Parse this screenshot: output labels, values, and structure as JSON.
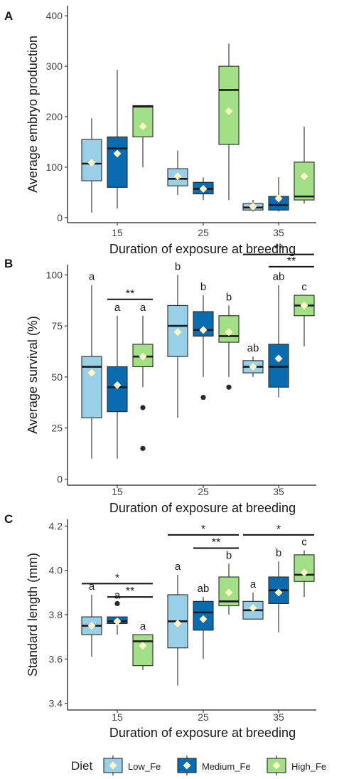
{
  "legend": {
    "title": "Diet",
    "entries": [
      {
        "label": "Low_Fe",
        "color": "#99CFE7"
      },
      {
        "label": "Medium_Fe",
        "color": "#0A6BAE"
      },
      {
        "label": "High_Fe",
        "color": "#A2DF86"
      }
    ],
    "mean_marker_color": "#FFF6C6",
    "outlier_color": "#2a2a2a"
  },
  "chart_data": [
    {
      "type": "box",
      "panel_letter": "A",
      "xlabel": "Duration of exposure at breeding",
      "ylabel": "Average embryo production",
      "categories": [
        "15",
        "25",
        "35"
      ],
      "ylim": [
        -10,
        420
      ],
      "yticks": [
        0,
        100,
        200,
        300,
        400
      ],
      "series": [
        {
          "name": "Low_Fe",
          "boxes": [
            {
              "min": 10,
              "q1": 73,
              "median": 107,
              "q3": 155,
              "max": 197,
              "mean": 109,
              "outliers": [],
              "letter": ""
            },
            {
              "min": 45,
              "q1": 63,
              "median": 77,
              "q3": 97,
              "max": 133,
              "mean": 82,
              "outliers": [],
              "letter": ""
            },
            {
              "min": 12,
              "q1": 15,
              "median": 20,
              "q3": 28,
              "max": 35,
              "mean": 22,
              "outliers": [],
              "letter": ""
            }
          ]
        },
        {
          "name": "Medium_Fe",
          "boxes": [
            {
              "min": 18,
              "q1": 60,
              "median": 137,
              "q3": 160,
              "max": 293,
              "mean": 127,
              "outliers": [],
              "letter": ""
            },
            {
              "min": 35,
              "q1": 47,
              "median": 57,
              "q3": 70,
              "max": 80,
              "mean": 57,
              "outliers": [],
              "letter": ""
            },
            {
              "min": 12,
              "q1": 15,
              "median": 25,
              "q3": 42,
              "max": 80,
              "mean": 38,
              "outliers": [],
              "letter": ""
            }
          ]
        },
        {
          "name": "High_Fe",
          "boxes": [
            {
              "min": 100,
              "q1": 160,
              "median": 220,
              "q3": 222,
              "max": 222,
              "mean": 181,
              "outliers": [],
              "letter": ""
            },
            {
              "min": 35,
              "q1": 145,
              "median": 253,
              "q3": 300,
              "max": 345,
              "mean": 211,
              "outliers": [],
              "letter": ""
            },
            {
              "min": 28,
              "q1": 35,
              "median": 42,
              "q3": 110,
              "max": 180,
              "mean": 82,
              "outliers": [],
              "letter": ""
            }
          ]
        }
      ],
      "significance": []
    },
    {
      "type": "box",
      "panel_letter": "B",
      "xlabel": "Duration of exposure at breeding",
      "ylabel": "Average survival (%)",
      "categories": [
        "15",
        "25",
        "35"
      ],
      "ylim": [
        -3,
        105
      ],
      "yticks": [
        0,
        25,
        50,
        75,
        100
      ],
      "series": [
        {
          "name": "Low_Fe",
          "boxes": [
            {
              "min": 10,
              "q1": 30,
              "median": 55,
              "q3": 60,
              "max": 95,
              "mean": 52,
              "outliers": [],
              "letter": "a"
            },
            {
              "min": 30,
              "q1": 60,
              "median": 75,
              "q3": 85,
              "max": 100,
              "mean": 72,
              "outliers": [],
              "letter": "b"
            },
            {
              "min": 50,
              "q1": 52,
              "median": 55,
              "q3": 58,
              "max": 60,
              "mean": 55,
              "outliers": [],
              "letter": "ab"
            }
          ]
        },
        {
          "name": "Medium_Fe",
          "boxes": [
            {
              "min": 10,
              "q1": 33,
              "median": 45,
              "q3": 55,
              "max": 80,
              "mean": 46,
              "outliers": [],
              "letter": "a"
            },
            {
              "min": 50,
              "q1": 70,
              "median": 73,
              "q3": 82,
              "max": 90,
              "mean": 73,
              "outliers": [
                40
              ],
              "letter": "b"
            },
            {
              "min": 40,
              "q1": 45,
              "median": 55,
              "q3": 66,
              "max": 95,
              "mean": 59,
              "outliers": [],
              "letter": "ab"
            }
          ]
        },
        {
          "name": "High_Fe",
          "boxes": [
            {
              "min": 45,
              "q1": 55,
              "median": 60,
              "q3": 66,
              "max": 80,
              "mean": 60,
              "outliers": [
                35,
                15
              ],
              "letter": "a"
            },
            {
              "min": 50,
              "q1": 67,
              "median": 70,
              "q3": 80,
              "max": 85,
              "mean": 72,
              "outliers": [
                45
              ],
              "letter": "b"
            },
            {
              "min": 65,
              "q1": 80,
              "median": 85,
              "q3": 90,
              "max": 90,
              "mean": 85,
              "outliers": [],
              "letter": "c"
            }
          ]
        }
      ],
      "significance": [
        {
          "group": 0,
          "from": 1,
          "to": 2,
          "y": 88,
          "label": "**"
        },
        {
          "group": 2,
          "from": 0,
          "to": 2,
          "y": 110,
          "label": "**"
        },
        {
          "group": 2,
          "from": 1,
          "to": 2,
          "y": 104,
          "label": "**"
        }
      ]
    },
    {
      "type": "box",
      "panel_letter": "C",
      "xlabel": "Duration of exposure at breeding",
      "ylabel": "Standard length (mm)",
      "categories": [
        "15",
        "25",
        "35"
      ],
      "ylim": [
        3.37,
        4.23
      ],
      "yticks": [
        3.4,
        3.6,
        3.8,
        4.0,
        4.2
      ],
      "series": [
        {
          "name": "Low_Fe",
          "boxes": [
            {
              "min": 3.61,
              "q1": 3.71,
              "median": 3.75,
              "q3": 3.79,
              "max": 3.89,
              "mean": 3.75,
              "outliers": [],
              "letter": "a"
            },
            {
              "min": 3.48,
              "q1": 3.65,
              "median": 3.77,
              "q3": 3.89,
              "max": 3.98,
              "mean": 3.76,
              "outliers": [],
              "letter": "a"
            },
            {
              "min": 3.78,
              "q1": 3.78,
              "median": 3.82,
              "q3": 3.86,
              "max": 3.9,
              "mean": 3.83,
              "outliers": [],
              "letter": "a"
            }
          ]
        },
        {
          "name": "Medium_Fe",
          "boxes": [
            {
              "min": 3.71,
              "q1": 3.76,
              "median": 3.77,
              "q3": 3.79,
              "max": 3.79,
              "mean": 3.77,
              "outliers": [
                3.85
              ],
              "letter": "a"
            },
            {
              "min": 3.6,
              "q1": 3.73,
              "median": 3.81,
              "q3": 3.86,
              "max": 3.88,
              "mean": 3.78,
              "outliers": [],
              "letter": "ab"
            },
            {
              "min": 3.72,
              "q1": 3.85,
              "median": 3.91,
              "q3": 3.97,
              "max": 4.04,
              "mean": 3.9,
              "outliers": [],
              "letter": "b"
            }
          ]
        },
        {
          "name": "High_Fe",
          "boxes": [
            {
              "min": 3.55,
              "q1": 3.57,
              "median": 3.68,
              "q3": 3.71,
              "max": 3.71,
              "mean": 3.66,
              "outliers": [],
              "letter": "a"
            },
            {
              "min": 3.8,
              "q1": 3.84,
              "median": 3.86,
              "q3": 3.97,
              "max": 4.03,
              "mean": 3.9,
              "outliers": [],
              "letter": "b"
            },
            {
              "min": 3.88,
              "q1": 3.95,
              "median": 3.98,
              "q3": 4.07,
              "max": 4.09,
              "mean": 3.99,
              "outliers": [],
              "letter": "c"
            }
          ]
        }
      ],
      "significance": [
        {
          "group": 0,
          "from": 0,
          "to": 2,
          "y": 3.94,
          "label": "*"
        },
        {
          "group": 0,
          "from": 1,
          "to": 2,
          "y": 3.88,
          "label": "**"
        },
        {
          "group": 1,
          "from": 0,
          "to": 2,
          "y": 4.16,
          "label": "*"
        },
        {
          "group": 1,
          "from": 1,
          "to": 2,
          "y": 4.1,
          "label": "**"
        },
        {
          "group": 2,
          "from": 0,
          "to": 2,
          "y": 4.16,
          "label": "*"
        }
      ]
    }
  ]
}
